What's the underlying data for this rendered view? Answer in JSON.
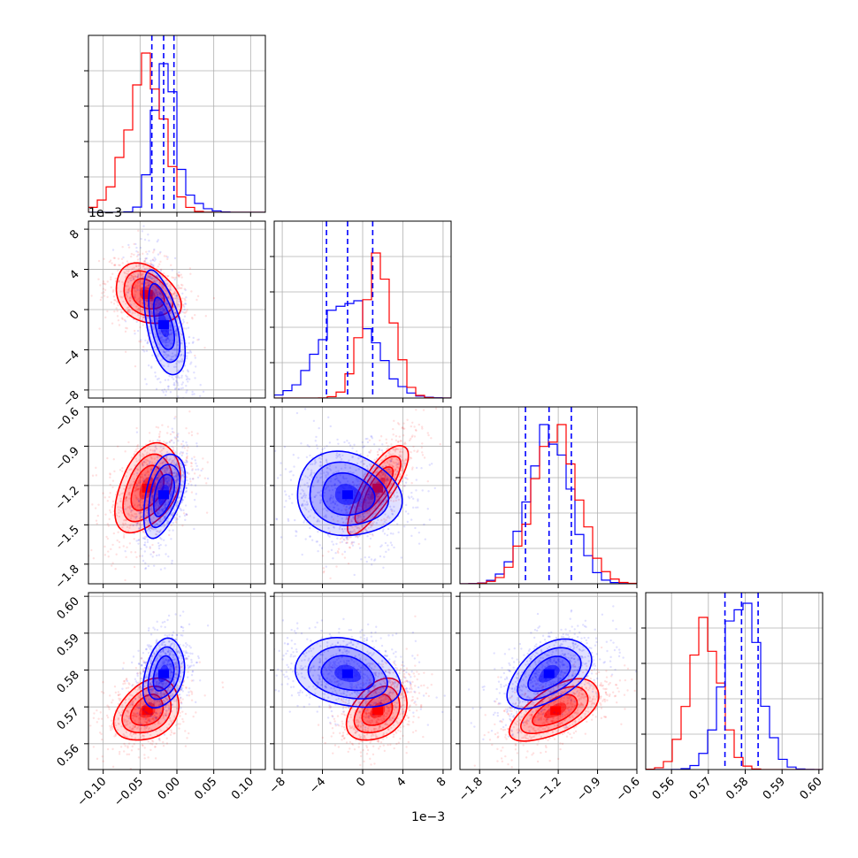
{
  "colors": {
    "series_a": "#0000ff",
    "series_b": "#ff0000",
    "grid": "#b0b0b0",
    "axes": "#000000"
  },
  "offset_labels": {
    "row1": "1e−3",
    "col1": "1e−3"
  },
  "chart_data": {
    "type": "corner",
    "title": "",
    "grid": true,
    "parameters": [
      {
        "range": [
          -0.12,
          0.12
        ],
        "ticks": [
          -0.1,
          -0.05,
          0.0,
          0.05,
          0.1
        ],
        "tick_labels": [
          "−0.10",
          "−0.05",
          "0.00",
          "0.05",
          "0.10"
        ]
      },
      {
        "range": [
          -0.0088,
          0.0088
        ],
        "ticks": [
          -0.008,
          -0.004,
          0,
          0.004,
          0.008
        ],
        "tick_labels": [
          "−8",
          "−4",
          "0",
          "4",
          "8"
        ],
        "offset": "1e−3"
      },
      {
        "range": [
          -1.95,
          -0.6
        ],
        "ticks": [
          -1.8,
          -1.5,
          -1.2,
          -0.9,
          -0.6
        ],
        "tick_labels": [
          "−1.8",
          "−1.5",
          "−1.2",
          "−0.9",
          "−0.6"
        ]
      },
      {
        "range": [
          0.553,
          0.601
        ],
        "ticks": [
          0.56,
          0.57,
          0.58,
          0.59,
          0.6
        ],
        "tick_labels": [
          "0.56",
          "0.57",
          "0.58",
          "0.59",
          "0.60"
        ]
      }
    ],
    "series": [
      {
        "color": "#0000ff",
        "means": [
          -0.018,
          -0.0015,
          -1.27,
          0.579
        ],
        "sigmas": [
          0.014,
          0.0026,
          0.16,
          0.0047
        ],
        "quantiles": [
          [
            -0.034,
            -0.018,
            -0.004
          ],
          [
            -0.0036,
            -0.0015,
            0.001
          ],
          [
            -1.45,
            -1.27,
            -1.1
          ],
          [
            0.5745,
            0.579,
            0.5835
          ]
        ],
        "correlations": {
          "0_1": -0.55,
          "0_2": 0.45,
          "0_3": 0.3,
          "1_2": -0.1,
          "1_3": -0.25,
          "2_3": 0.5
        },
        "hist_peak": [
          0.84,
          0.55,
          0.9,
          0.94
        ]
      },
      {
        "color": "#ff0000",
        "means": [
          -0.04,
          0.0015,
          -1.22,
          0.569
        ],
        "sigmas": [
          0.022,
          0.0015,
          0.17,
          0.0042
        ],
        "correlations": {
          "0_1": -0.3,
          "0_2": 0.4,
          "0_3": 0.3,
          "1_2": 0.8,
          "1_3": 0.35,
          "2_3": 0.6
        },
        "hist_peak": [
          0.9,
          0.82,
          0.9,
          0.86
        ]
      }
    ]
  }
}
